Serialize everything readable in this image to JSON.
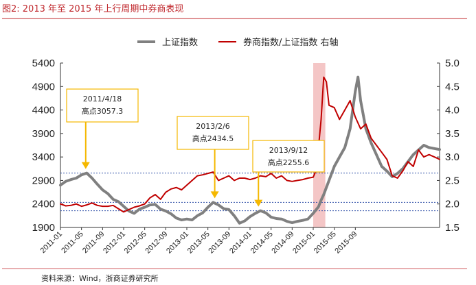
{
  "figure_title": "图2:  2013 年至 2015 年上行周期中券商表现",
  "source": "资料来源：Wind，浙商证券研究所",
  "colors": {
    "index_line": "#808080",
    "ratio_line": "#c00000",
    "highlight_band": "#f4c6c6",
    "guide_line": "#2f4fa8",
    "annotation_arrow": "#f5b800",
    "annotation_border": "#f5b800",
    "title": "#c0282d"
  },
  "chart_data": {
    "type": "line",
    "title": "图2:  2013 年至 2015 年上行周期中券商表现",
    "x_ticks": [
      "2011-01",
      "2011-05",
      "2011-09",
      "2012-01",
      "2012-05",
      "2012-09",
      "2013-01",
      "2013-05",
      "2013-09",
      "2014-01",
      "2014-05",
      "2014-09",
      "2015-01",
      "2015-05",
      "2015-09"
    ],
    "x_range": [
      0,
      72
    ],
    "left_axis": {
      "range": [
        1900,
        5400
      ],
      "ticks": [
        "5400",
        "4900",
        "4400",
        "3900",
        "3400",
        "2900",
        "2400",
        "1900"
      ]
    },
    "right_axis": {
      "range": [
        1.5,
        5.0
      ],
      "ticks": [
        "5.0",
        "4.5",
        "4.0",
        "3.5",
        "3.0",
        "2.5",
        "2.0",
        "1.5"
      ]
    },
    "legend": [
      {
        "name": "上证指数",
        "position": "top"
      },
      {
        "name": "券商指数/上证指数 右轴",
        "position": "top"
      }
    ],
    "highlight": {
      "x_start": 48.0,
      "x_end": 50.3,
      "label": ""
    },
    "guide_lines_left_axis": [
      3057.3,
      2434.5,
      2255.6
    ],
    "series": [
      {
        "name": "上证指数",
        "axis": "left",
        "x": [
          0,
          1,
          2,
          3,
          4,
          5,
          6,
          7,
          8,
          9,
          10,
          11,
          12,
          13,
          14,
          15,
          16,
          17,
          18,
          19,
          20,
          21,
          22,
          23,
          24,
          25,
          26,
          27,
          28,
          29,
          30,
          31,
          32,
          33,
          34,
          35,
          36,
          37,
          38,
          39,
          40,
          41,
          42,
          43,
          44,
          45,
          46,
          47,
          48,
          49,
          49.5,
          50,
          51,
          52,
          53,
          54,
          55,
          55.5,
          56,
          56.5,
          57,
          58,
          59,
          60,
          61,
          62,
          63,
          64,
          65,
          66,
          67,
          68,
          69,
          70,
          71,
          72
        ],
        "values": [
          2800,
          2880,
          2920,
          2950,
          3020,
          3057,
          2950,
          2820,
          2700,
          2620,
          2500,
          2450,
          2350,
          2250,
          2200,
          2290,
          2330,
          2380,
          2390,
          2290,
          2250,
          2190,
          2100,
          2060,
          2080,
          2060,
          2150,
          2210,
          2330,
          2434,
          2380,
          2300,
          2280,
          2150,
          1990,
          2040,
          2130,
          2200,
          2256,
          2210,
          2120,
          2090,
          2080,
          2030,
          2000,
          2030,
          2050,
          2080,
          2200,
          2340,
          2480,
          2600,
          2900,
          3200,
          3400,
          3600,
          4000,
          4400,
          4800,
          5100,
          4600,
          4000,
          3700,
          3450,
          3200,
          3100,
          2980,
          3050,
          3150,
          3300,
          3450,
          3550,
          3650,
          3600,
          3580,
          3560
        ]
      },
      {
        "name": "券商指数/上证指数 右轴",
        "axis": "right",
        "x": [
          0,
          1,
          2,
          3,
          4,
          5,
          6,
          7,
          8,
          9,
          10,
          11,
          12,
          13,
          14,
          15,
          16,
          17,
          18,
          19,
          20,
          21,
          22,
          23,
          24,
          25,
          26,
          27,
          28,
          29,
          30,
          31,
          32,
          33,
          34,
          35,
          36,
          37,
          38,
          39,
          40,
          41,
          42,
          43,
          44,
          45,
          46,
          47,
          48,
          48.5,
          49,
          49.5,
          50,
          50.5,
          51,
          52,
          53,
          54,
          55,
          56,
          57,
          58,
          59,
          60,
          61,
          62,
          63,
          64,
          65,
          66,
          67,
          68,
          69,
          70,
          71,
          72
        ],
        "values": [
          2.0,
          1.96,
          1.97,
          2.0,
          1.95,
          1.98,
          2.02,
          1.97,
          1.95,
          1.95,
          1.97,
          1.9,
          1.83,
          1.88,
          1.93,
          1.96,
          2.0,
          2.13,
          2.2,
          2.1,
          2.25,
          2.32,
          2.35,
          2.3,
          2.4,
          2.5,
          2.6,
          2.62,
          2.65,
          2.68,
          2.5,
          2.55,
          2.6,
          2.5,
          2.55,
          2.55,
          2.52,
          2.55,
          2.6,
          2.58,
          2.65,
          2.55,
          2.6,
          2.5,
          2.48,
          2.5,
          2.52,
          2.55,
          2.57,
          2.7,
          3.2,
          3.8,
          4.7,
          4.6,
          4.1,
          4.05,
          3.8,
          4.0,
          4.2,
          3.85,
          3.6,
          3.7,
          3.4,
          3.25,
          3.1,
          2.95,
          2.6,
          2.55,
          2.7,
          2.9,
          2.8,
          3.15,
          3.0,
          3.05,
          3.0,
          2.95
        ]
      }
    ],
    "annotations": [
      {
        "date": "2011/4/18",
        "label": "高点3057.3",
        "x": 4.8,
        "value": 3057.3
      },
      {
        "date": "2013/2/6",
        "label": "高点2434.5",
        "x": 29.3,
        "value": 2434.5
      },
      {
        "date": "2013/9/12",
        "label": "高点2255.6",
        "x": 37.6,
        "value": 2255.6
      }
    ]
  }
}
